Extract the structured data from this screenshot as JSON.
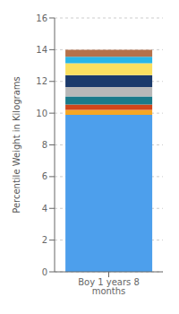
{
  "chart_data": {
    "type": "bar",
    "stacked": true,
    "categories": [
      "Boy 1 years 8 months"
    ],
    "series": [
      {
        "color": "#4D9FEC",
        "values": [
          9.9
        ]
      },
      {
        "color": "#F5A623",
        "values": [
          0.3
        ]
      },
      {
        "color": "#D0461B",
        "values": [
          0.35
        ]
      },
      {
        "color": "#1A7A8A",
        "values": [
          0.5
        ]
      },
      {
        "color": "#B8B8B8",
        "values": [
          0.6
        ]
      },
      {
        "color": "#1B3A6B",
        "values": [
          0.75
        ]
      },
      {
        "color": "#FAE060",
        "values": [
          0.75
        ]
      },
      {
        "color": "#29B6E8",
        "values": [
          0.4
        ]
      },
      {
        "color": "#B5714A",
        "values": [
          0.45
        ]
      }
    ],
    "ylabel": "Percentile Weight in Kilograms",
    "ylim": [
      0,
      16
    ],
    "yticks": [
      0,
      2,
      4,
      6,
      8,
      10,
      12,
      14,
      16
    ],
    "grid": true
  }
}
